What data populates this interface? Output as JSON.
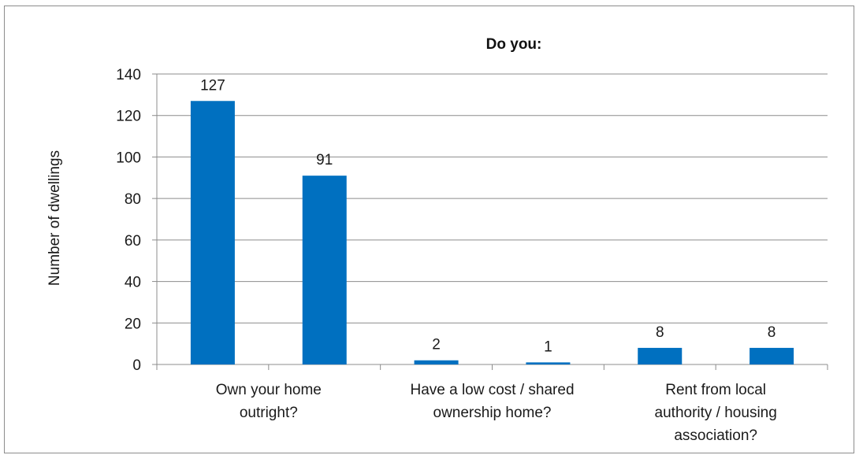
{
  "chart_data": {
    "type": "bar",
    "title": "Do you:",
    "xlabel": "",
    "ylabel": "Number of dwellings",
    "ylim": [
      0,
      140
    ],
    "yticks": [
      0,
      20,
      40,
      60,
      80,
      100,
      120,
      140
    ],
    "grid": true,
    "bar_color": "#0070C0",
    "categories": [
      "Own your home outright?",
      "",
      "Have a low cost / shared ownership home?",
      "",
      "Rent from local authority / housing association?",
      ""
    ],
    "category_label_lines": [
      [
        "Own your home",
        "outright?"
      ],
      [],
      [
        "Have a low cost / shared",
        "ownership home?"
      ],
      [],
      [
        "Rent from local",
        "authority / housing",
        "association?"
      ],
      []
    ],
    "values": [
      127,
      91,
      2,
      1,
      8,
      8
    ],
    "data_labels": [
      "127",
      "91",
      "2",
      "1",
      "8",
      "8"
    ]
  }
}
